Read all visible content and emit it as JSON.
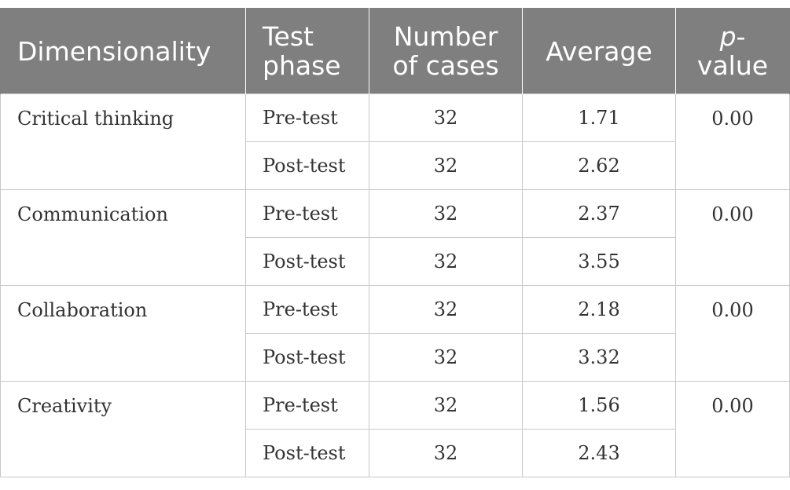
{
  "table": {
    "headers": {
      "dimensionality": "Dimensionality",
      "test_phase_l1": "Test",
      "test_phase_l2": "phase",
      "cases_l1": "Number",
      "cases_l2": "of cases",
      "average": "Average",
      "pvalue_p": "p",
      "pvalue_dash": "-",
      "pvalue_l2": "value"
    },
    "groups": [
      {
        "dimension": "Critical thinking",
        "p_value": "0.00",
        "rows": [
          {
            "phase": "Pre-test",
            "cases": "32",
            "average": "1.71"
          },
          {
            "phase": "Post-test",
            "cases": "32",
            "average": "2.62"
          }
        ]
      },
      {
        "dimension": "Communication",
        "p_value": "0.00",
        "rows": [
          {
            "phase": "Pre-test",
            "cases": "32",
            "average": "2.37"
          },
          {
            "phase": "Post-test",
            "cases": "32",
            "average": "3.55"
          }
        ]
      },
      {
        "dimension": "Collaboration",
        "p_value": "0.00",
        "rows": [
          {
            "phase": "Pre-test",
            "cases": "32",
            "average": "2.18"
          },
          {
            "phase": "Post-test",
            "cases": "32",
            "average": "3.32"
          }
        ]
      },
      {
        "dimension": "Creativity",
        "p_value": "0.00",
        "rows": [
          {
            "phase": "Pre-test",
            "cases": "32",
            "average": "1.56"
          },
          {
            "phase": "Post-test",
            "cases": "32",
            "average": "2.43"
          }
        ]
      }
    ]
  }
}
